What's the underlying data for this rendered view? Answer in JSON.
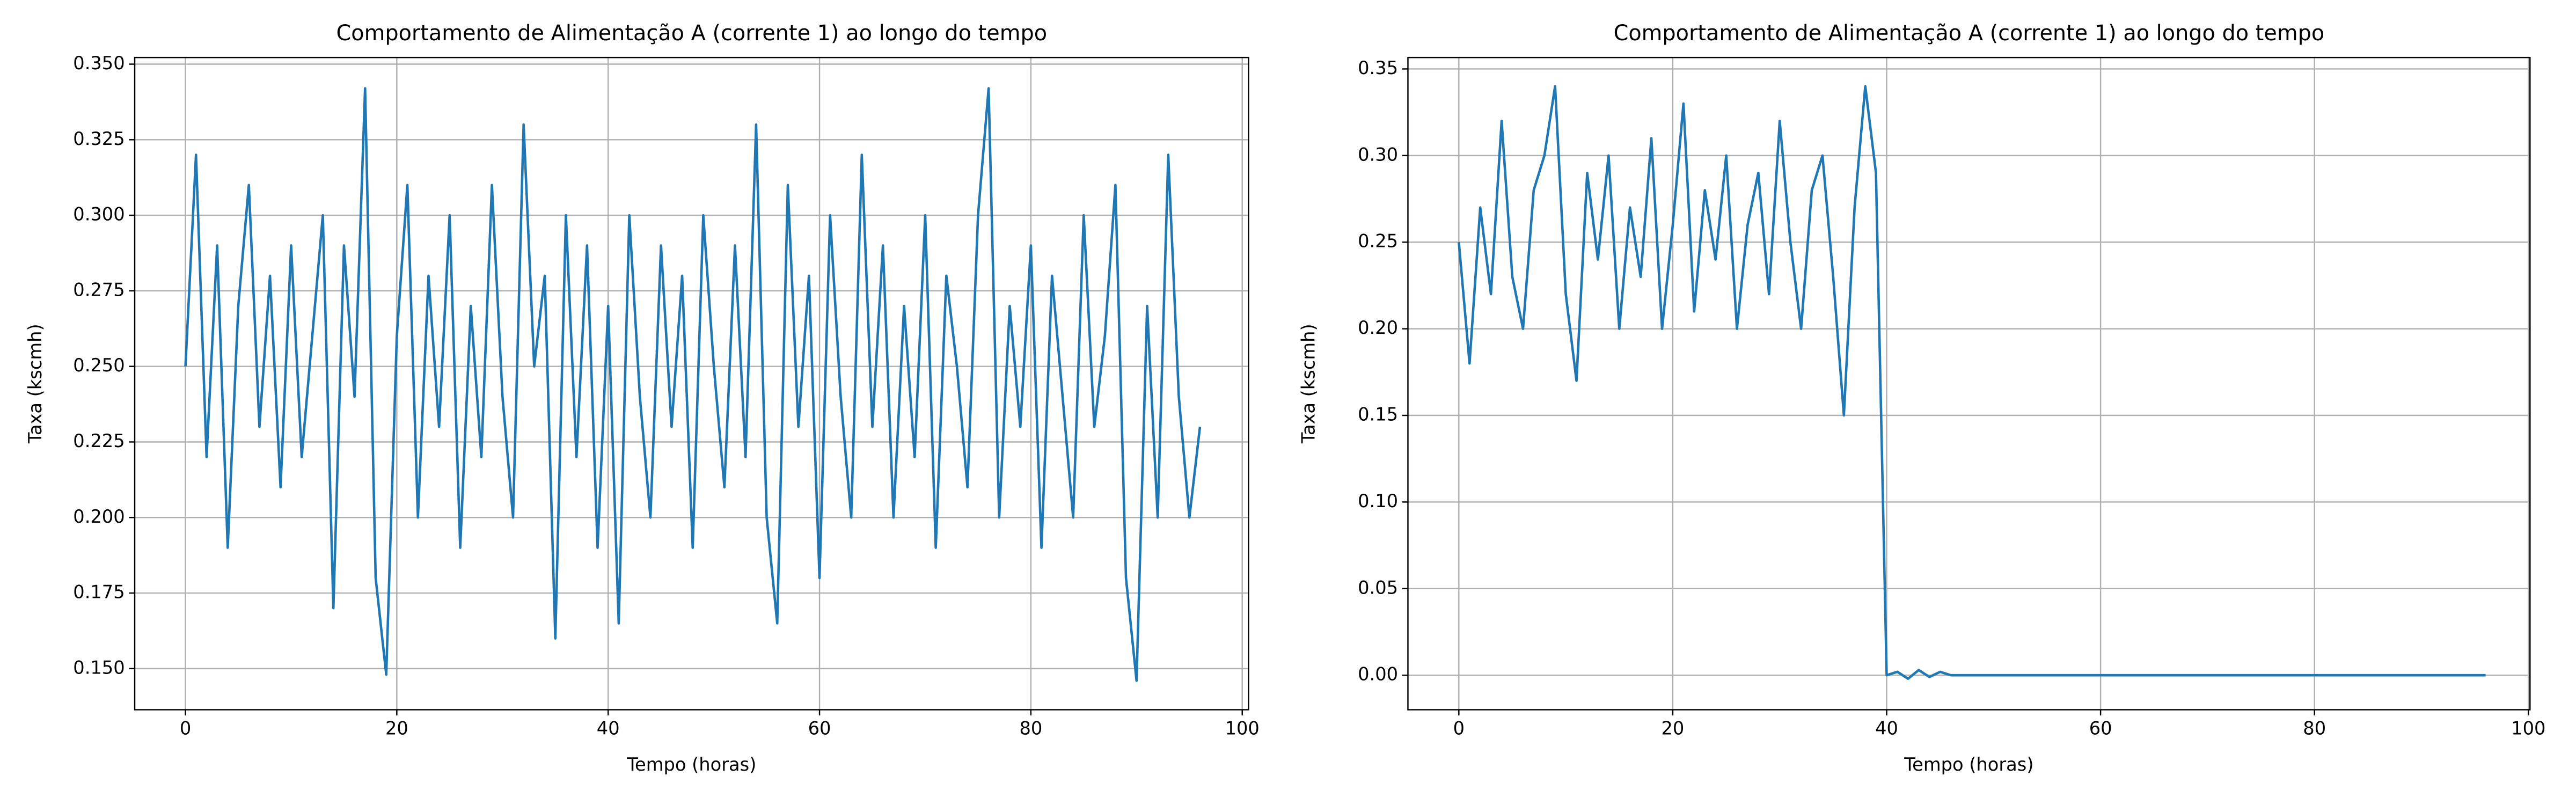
{
  "chart_data": [
    {
      "type": "line",
      "title": "Comportamento de Alimentação A (corrente 1) ao longo do tempo",
      "xlabel": "Tempo (horas)",
      "ylabel": "Taxa (kscmh)",
      "grid": true,
      "xlim": [
        -4.8,
        100.6
      ],
      "ylim": [
        0.1364,
        0.3522
      ],
      "xticks": [
        0,
        20,
        40,
        60,
        80,
        100
      ],
      "yticks": [
        {
          "value": 0.15,
          "label": "0.150"
        },
        {
          "value": 0.175,
          "label": "0.175"
        },
        {
          "value": 0.2,
          "label": "0.200"
        },
        {
          "value": 0.225,
          "label": "0.225"
        },
        {
          "value": 0.25,
          "label": "0.250"
        },
        {
          "value": 0.275,
          "label": "0.275"
        },
        {
          "value": 0.3,
          "label": "0.300"
        },
        {
          "value": 0.325,
          "label": "0.325"
        },
        {
          "value": 0.35,
          "label": "0.350"
        }
      ],
      "x": [
        0,
        1,
        2,
        3,
        4,
        5,
        6,
        7,
        8,
        9,
        10,
        11,
        12,
        13,
        14,
        15,
        16,
        17,
        18,
        19,
        20,
        21,
        22,
        23,
        24,
        25,
        26,
        27,
        28,
        29,
        30,
        31,
        32,
        33,
        34,
        35,
        36,
        37,
        38,
        39,
        40,
        41,
        42,
        43,
        44,
        45,
        46,
        47,
        48,
        49,
        50,
        51,
        52,
        53,
        54,
        55,
        56,
        57,
        58,
        59,
        60,
        61,
        62,
        63,
        64,
        65,
        66,
        67,
        68,
        69,
        70,
        71,
        72,
        73,
        74,
        75,
        76,
        77,
        78,
        79,
        80,
        81,
        82,
        83,
        84,
        85,
        86,
        87,
        88,
        89,
        90,
        91,
        92,
        93,
        94,
        95,
        96
      ],
      "series": [
        {
          "color": "#1f77b4",
          "values": [
            0.25,
            0.32,
            0.22,
            0.29,
            0.19,
            0.27,
            0.31,
            0.23,
            0.28,
            0.21,
            0.29,
            0.22,
            0.26,
            0.3,
            0.17,
            0.29,
            0.24,
            0.342,
            0.18,
            0.148,
            0.26,
            0.31,
            0.2,
            0.28,
            0.23,
            0.3,
            0.19,
            0.27,
            0.22,
            0.31,
            0.24,
            0.2,
            0.33,
            0.25,
            0.28,
            0.16,
            0.3,
            0.22,
            0.29,
            0.19,
            0.27,
            0.165,
            0.3,
            0.24,
            0.2,
            0.29,
            0.23,
            0.28,
            0.19,
            0.3,
            0.25,
            0.21,
            0.29,
            0.22,
            0.33,
            0.2,
            0.165,
            0.31,
            0.23,
            0.28,
            0.18,
            0.3,
            0.24,
            0.2,
            0.32,
            0.23,
            0.29,
            0.2,
            0.27,
            0.22,
            0.3,
            0.19,
            0.28,
            0.25,
            0.21,
            0.3,
            0.342,
            0.2,
            0.27,
            0.23,
            0.29,
            0.19,
            0.28,
            0.24,
            0.2,
            0.3,
            0.23,
            0.26,
            0.31,
            0.18,
            0.146,
            0.27,
            0.2,
            0.32,
            0.24,
            0.2,
            0.23
          ]
        }
      ]
    },
    {
      "type": "line",
      "title": "Comportamento de Alimentação A (corrente 1) ao longo do tempo",
      "xlabel": "Tempo (horas)",
      "ylabel": "Taxa (kscmh)",
      "grid": true,
      "xlim": [
        -4.76,
        100.15
      ],
      "ylim": [
        -0.0199,
        0.3566
      ],
      "xticks": [
        0,
        20,
        40,
        60,
        80,
        100
      ],
      "yticks": [
        {
          "value": 0,
          "label": "0.00"
        },
        {
          "value": 0.05,
          "label": "0.05"
        },
        {
          "value": 0.1,
          "label": "0.10"
        },
        {
          "value": 0.15,
          "label": "0.15"
        },
        {
          "value": 0.2,
          "label": "0.20"
        },
        {
          "value": 0.25,
          "label": "0.25"
        },
        {
          "value": 0.3,
          "label": "0.30"
        },
        {
          "value": 0.35,
          "label": "0.35"
        }
      ],
      "x": [
        0,
        1,
        2,
        3,
        4,
        5,
        6,
        7,
        8,
        9,
        10,
        11,
        12,
        13,
        14,
        15,
        16,
        17,
        18,
        19,
        20,
        21,
        22,
        23,
        24,
        25,
        26,
        27,
        28,
        29,
        30,
        31,
        32,
        33,
        34,
        35,
        36,
        37,
        38,
        39,
        40,
        41,
        42,
        43,
        44,
        45,
        46,
        96
      ],
      "series": [
        {
          "color": "#1f77b4",
          "values": [
            0.25,
            0.18,
            0.27,
            0.22,
            0.32,
            0.23,
            0.2,
            0.28,
            0.3,
            0.34,
            0.22,
            0.17,
            0.29,
            0.24,
            0.3,
            0.2,
            0.27,
            0.23,
            0.31,
            0.2,
            0.26,
            0.33,
            0.21,
            0.28,
            0.24,
            0.3,
            0.2,
            0.26,
            0.29,
            0.22,
            0.32,
            0.25,
            0.2,
            0.28,
            0.3,
            0.23,
            0.15,
            0.27,
            0.34,
            0.29,
            0,
            0.002,
            -0.002,
            0.003,
            -0.001,
            0.002,
            0,
            0
          ]
        }
      ]
    }
  ]
}
